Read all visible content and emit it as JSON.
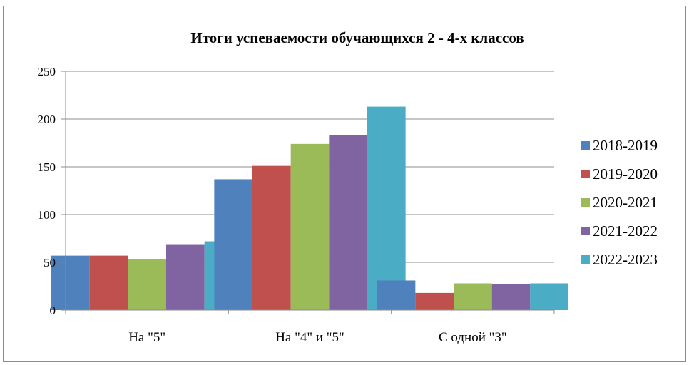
{
  "chart_data": {
    "type": "bar",
    "title": "Итоги успеваемости обучающихся 2 - 4-х классов",
    "xlabel": "",
    "ylabel": "",
    "categories": [
      "На \"5\"",
      "На \"4\" и \"5\"",
      "С одной \"3\""
    ],
    "series": [
      {
        "name": "2018-2019",
        "values": [
          57,
          137,
          31
        ],
        "color": "#4f81bd"
      },
      {
        "name": "2019-2020",
        "values": [
          57,
          151,
          18
        ],
        "color": "#c0504d"
      },
      {
        "name": "2020-2021",
        "values": [
          53,
          174,
          28
        ],
        "color": "#9bbb59"
      },
      {
        "name": "2021-2022",
        "values": [
          69,
          183,
          27
        ],
        "color": "#8064a2"
      },
      {
        "name": "2022-2023",
        "values": [
          72,
          213,
          28
        ],
        "color": "#4bacc6"
      }
    ],
    "ylim": [
      0,
      250
    ],
    "yticks": [
      0,
      50,
      100,
      150,
      200,
      250
    ],
    "grid": true,
    "legend_position": "right"
  }
}
